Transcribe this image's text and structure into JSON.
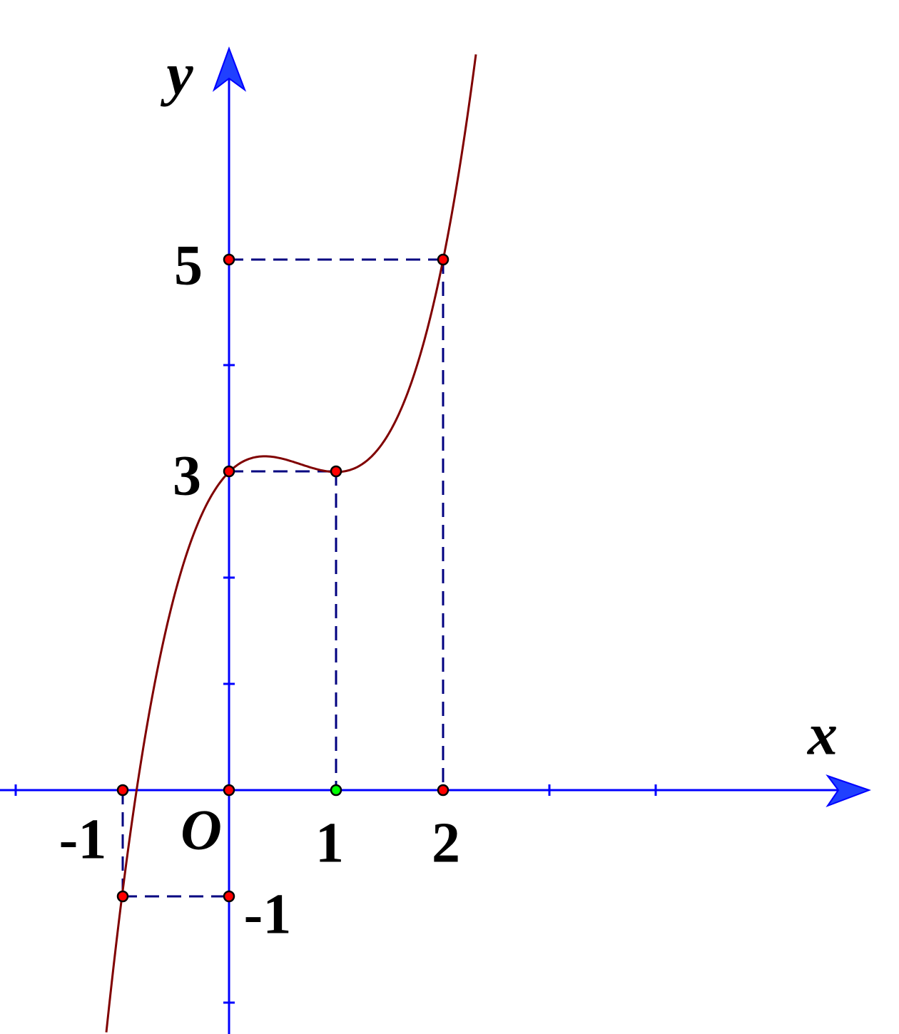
{
  "axes": {
    "x_label": "x",
    "y_label": "y",
    "origin_label": "O"
  },
  "x_tick_labels": [
    "-1",
    "1",
    "2"
  ],
  "y_tick_labels": [
    "5",
    "3",
    "-1"
  ]
}
